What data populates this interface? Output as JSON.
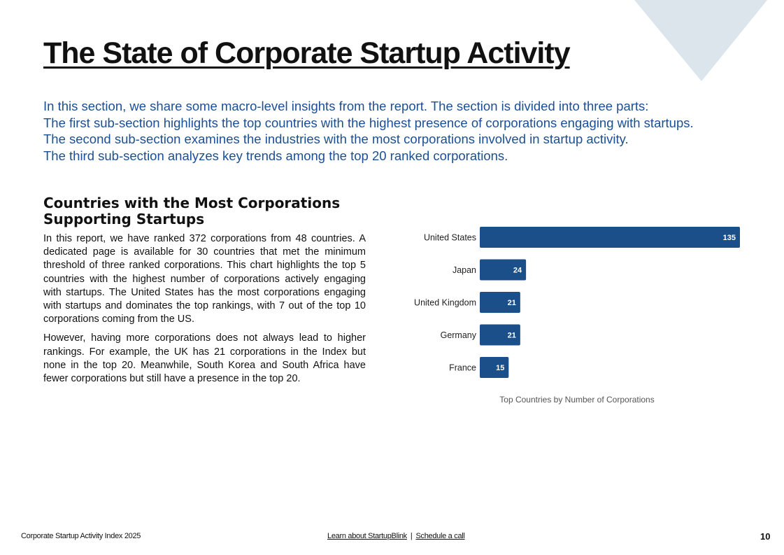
{
  "page": {
    "title": "The State of Corporate Startup Activity",
    "intro": [
      "In this section, we share some macro-level insights from the report. The section is divided into three parts:",
      "The first sub-section highlights the top countries with the highest presence of corporations engaging with startups.",
      "The second sub-section examines the industries with the most corporations involved in startup activity.",
      "The third sub-section analyzes key trends among the top 20 ranked corporations."
    ]
  },
  "section": {
    "heading": "Countries with the Most Corporations Supporting Startups",
    "paragraphs": [
      "In this report, we have ranked 372 corporations from 48 countries. A dedicated page is available for 30 countries that met the minimum threshold of three ranked corporations. This chart highlights the top 5 countries with the highest number of corporations actively engaging with startups. The United States has the most corporations engaging with startups and dominates the top rankings, with 7 out of the top 10 corporations coming from the US.",
      "However, having more corporations does not always lead to higher rankings. For example, the UK has 21 corporations in the Index but none in the top 20. Meanwhile, South Korea and South Africa have fewer corporations but still have a presence in the top 20."
    ]
  },
  "chart_data": {
    "type": "bar",
    "orientation": "horizontal",
    "categories": [
      "United States",
      "Japan",
      "United Kingdom",
      "Germany",
      "France"
    ],
    "values": [
      135,
      24,
      21,
      21,
      15
    ],
    "title": "Top Countries by Number of Corporations",
    "xlabel": "",
    "ylabel": "",
    "xlim": [
      0,
      135
    ],
    "data_labels": true,
    "grid": false,
    "bar_color": "#1b4f8a"
  },
  "colors": {
    "accent": "#1b4f93",
    "bar": "#1b4f8a",
    "corner_shape": "#dce4ec"
  },
  "footer": {
    "left": "Corporate Startup Activity Index 2025",
    "link1": "Learn about StartupBlink",
    "separator": "|",
    "link2": "Schedule a call",
    "page_number": "10"
  }
}
